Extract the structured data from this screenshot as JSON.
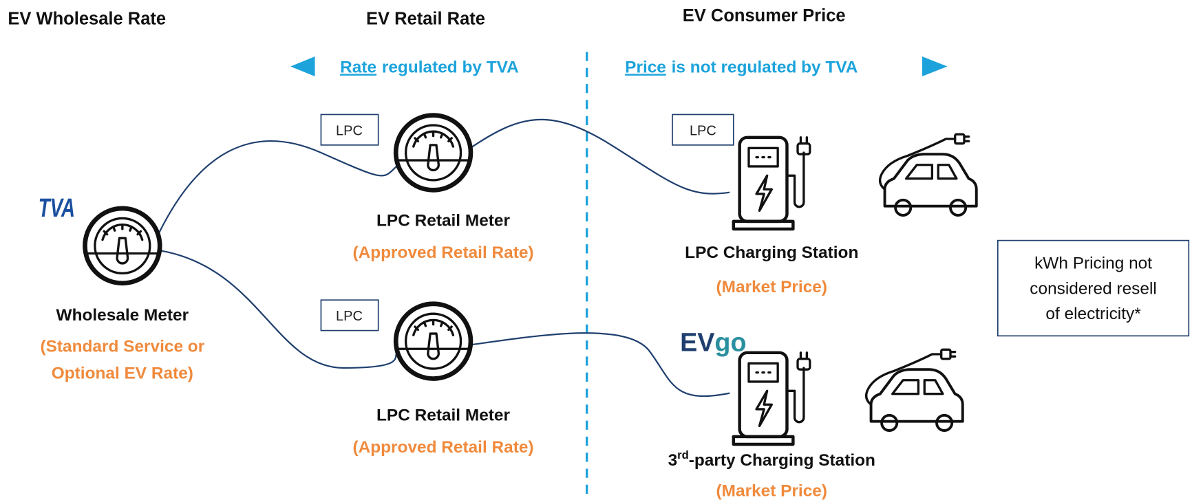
{
  "headers": [
    "EV Wholesale Rate",
    "EV Retail Rate",
    "EV Consumer Price"
  ],
  "regulation": {
    "left": {
      "keyword": "Rate",
      "rest": "regulated by TVA"
    },
    "right": {
      "keyword": "Price",
      "rest": "is not regulated by TVA"
    }
  },
  "logos": {
    "tva": "TVA",
    "evgo": [
      "EV",
      "go"
    ]
  },
  "wholesale_meter": {
    "label": "Wholesale Meter",
    "rate": [
      "(Standard Service or",
      "Optional EV Rate)"
    ]
  },
  "retail_meters": [
    {
      "tag": "LPC",
      "label": "LPC Retail Meter",
      "rate": "(Approved Retail Rate)"
    },
    {
      "tag": "LPC",
      "label": "LPC Retail Meter",
      "rate": "(Approved Retail Rate)"
    }
  ],
  "charging_stations": [
    {
      "tag": "LPC",
      "label": "LPC Charging Station",
      "price": "(Market Price)"
    },
    {
      "label_parts": [
        "3",
        "rd",
        "-party Charging Station"
      ],
      "price": "(Market Price)"
    }
  ],
  "note": [
    "kWh Pricing not",
    "considered resell",
    "of electricity*"
  ]
}
